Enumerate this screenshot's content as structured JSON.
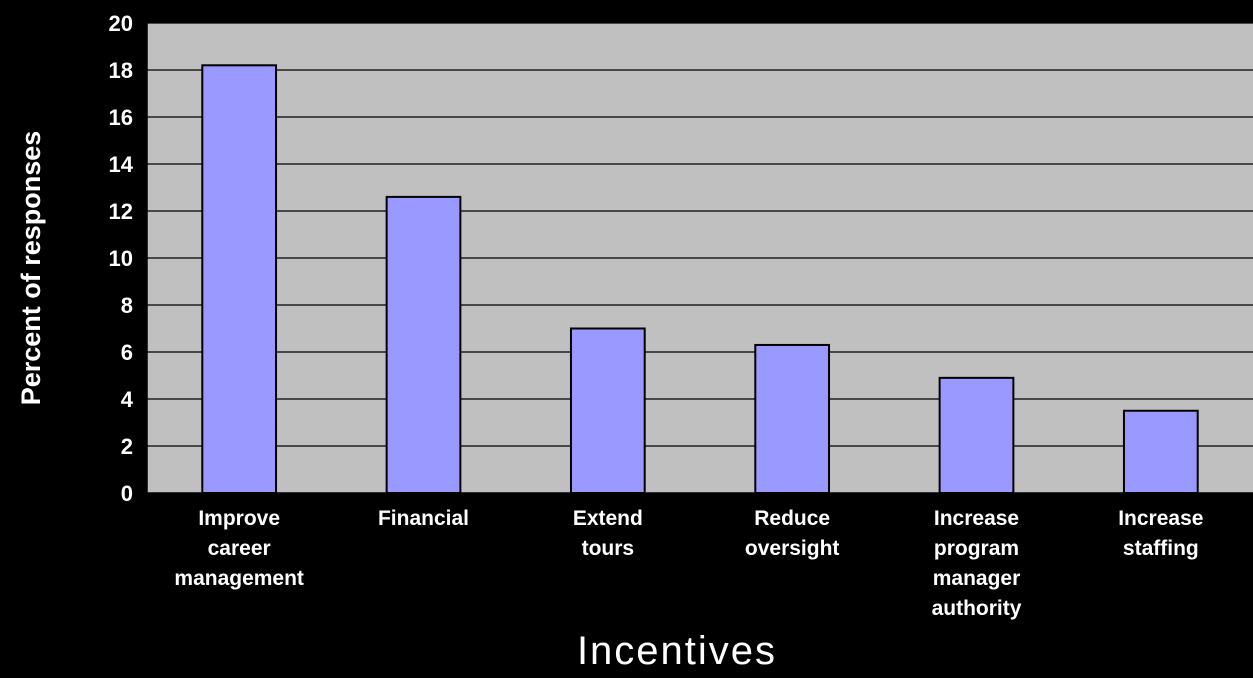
{
  "chart_data": {
    "type": "bar",
    "categories": [
      "Improve career management",
      "Financial",
      "Extend tours",
      "Reduce oversight",
      "Increase program manager authority",
      "Increase staffing"
    ],
    "category_lines": [
      [
        "Improve",
        "career",
        "management"
      ],
      [
        "Financial"
      ],
      [
        "Extend",
        "tours"
      ],
      [
        "Reduce",
        "oversight"
      ],
      [
        "Increase",
        "program",
        "manager",
        "authority"
      ],
      [
        "Increase",
        "staffing"
      ]
    ],
    "values": [
      18.2,
      12.6,
      7.0,
      6.3,
      4.9,
      3.5
    ],
    "ylabel": "Percent of responses",
    "xlabel": "Incentives",
    "ylim": [
      0,
      20
    ],
    "yticks": [
      0,
      2,
      4,
      6,
      8,
      10,
      12,
      14,
      16,
      18,
      20
    ],
    "grid": true,
    "colors": {
      "page_background": "#000000",
      "plot_background": "#c0c0c0",
      "bar_fill": "#9999ff",
      "bar_stroke": "#000000",
      "gridline": "#000000",
      "text": "#ffffff"
    }
  }
}
